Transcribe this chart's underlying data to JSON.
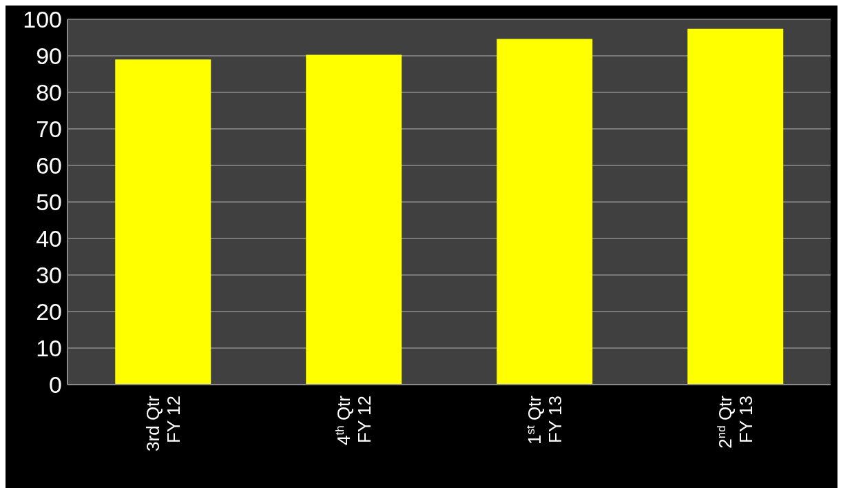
{
  "chart_data": {
    "type": "bar",
    "categories": [
      "3rd Qtr\nFY 12",
      "4$^{th}$ Qtr\nFY 12",
      "1$^{st}$ Qtr\nFY 13",
      "2$^{nd}$ Qtr\nFY 13"
    ],
    "values": [
      89.0,
      90.3,
      94.6,
      97.4
    ],
    "color": "#ffff00",
    "ylim": [
      0,
      100
    ],
    "yticks": [
      0,
      10,
      20,
      30,
      40,
      50,
      60,
      70,
      80,
      90,
      100
    ],
    "grid": "y"
  }
}
